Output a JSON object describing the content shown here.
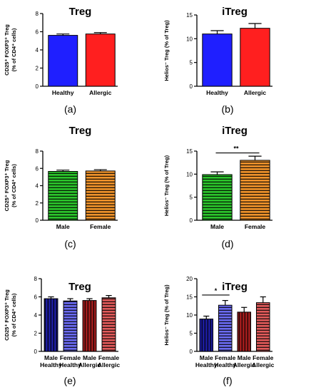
{
  "chart_data": [
    {
      "panel_label": "(a)",
      "type": "bar",
      "title": "Treg",
      "ylabel": "CD25⁺ FOXP3⁺ Treg\n(% of CD4⁺ cells)",
      "ylim": [
        0,
        8
      ],
      "yticks": [
        0,
        2,
        4,
        6,
        8
      ],
      "categories": [
        "Healthy",
        "Allergic"
      ],
      "values": [
        5.6,
        5.75
      ],
      "errors": [
        0.15,
        0.15
      ],
      "colors": [
        "#1f1fff",
        "#ff1f1f"
      ],
      "hatch": [
        "none",
        "none"
      ],
      "significance": []
    },
    {
      "panel_label": "(b)",
      "type": "bar",
      "title": "iTreg",
      "ylabel": "Helios⁻ Treg (% of Treg)",
      "ylim": [
        0,
        15
      ],
      "yticks": [
        0,
        5,
        10,
        15
      ],
      "categories": [
        "Healthy",
        "Allergic"
      ],
      "values": [
        11.0,
        12.2
      ],
      "errors": [
        0.7,
        1.0
      ],
      "colors": [
        "#1f1fff",
        "#ff1f1f"
      ],
      "hatch": [
        "none",
        "none"
      ],
      "significance": []
    },
    {
      "panel_label": "(c)",
      "type": "bar",
      "title": "Treg",
      "ylabel": "CD25⁺ FOXP3⁺ Treg\n(% of CD4⁺ cells)",
      "ylim": [
        0,
        8
      ],
      "yticks": [
        0,
        2,
        4,
        6,
        8
      ],
      "categories": [
        "Male",
        "Female"
      ],
      "values": [
        5.65,
        5.7
      ],
      "errors": [
        0.15,
        0.15
      ],
      "colors": [
        "#2bc42b",
        "#f0932b"
      ],
      "hatch": [
        "h",
        "h"
      ],
      "significance": []
    },
    {
      "panel_label": "(d)",
      "type": "bar",
      "title": "iTreg",
      "ylabel": "Helios⁻ Treg (% of Treg)",
      "ylim": [
        0,
        15
      ],
      "yticks": [
        0,
        5,
        10,
        15
      ],
      "categories": [
        "Male",
        "Female"
      ],
      "values": [
        9.9,
        13.0
      ],
      "errors": [
        0.6,
        0.9
      ],
      "colors": [
        "#2bc42b",
        "#f0932b"
      ],
      "hatch": [
        "h",
        "h"
      ],
      "significance": [
        {
          "from": 0,
          "to": 1,
          "label": "**",
          "y": 14.6
        }
      ]
    },
    {
      "panel_label": "(e)",
      "type": "bar",
      "title": "Treg",
      "ylabel": "CD25⁺ FOXP3⁺ Treg\n(% of CD4⁺ cells)",
      "ylim": [
        0,
        8
      ],
      "yticks": [
        0,
        2,
        4,
        6,
        8
      ],
      "categories": [
        "Male\nHealthy",
        "Female\nHealthy",
        "Male\nAllergic",
        "Female\nAllergic"
      ],
      "values": [
        5.8,
        5.55,
        5.6,
        5.9
      ],
      "errors": [
        0.2,
        0.25,
        0.2,
        0.25
      ],
      "colors": [
        "#1c1c9e",
        "#6a6af0",
        "#a01c1c",
        "#e05a5a"
      ],
      "hatch": [
        "v",
        "h",
        "v",
        "h"
      ],
      "significance": []
    },
    {
      "panel_label": "(f)",
      "type": "bar",
      "title": "iTreg",
      "ylabel": "Helios⁻ Treg (% of Treg)",
      "ylim": [
        0,
        20
      ],
      "yticks": [
        0,
        5,
        10,
        15,
        20
      ],
      "categories": [
        "Male\nHealthy",
        "Female\nHealthy",
        "Male\nAllergic",
        "Female\nAllergic"
      ],
      "values": [
        8.9,
        12.7,
        10.8,
        13.4
      ],
      "errors": [
        0.8,
        1.3,
        1.3,
        1.6
      ],
      "colors": [
        "#1c1c9e",
        "#6a6af0",
        "#a01c1c",
        "#e05a5a"
      ],
      "hatch": [
        "v",
        "h",
        "v",
        "h"
      ],
      "significance": [
        {
          "from": 0,
          "to": 1,
          "label": "*",
          "y": 15.5
        }
      ]
    }
  ]
}
